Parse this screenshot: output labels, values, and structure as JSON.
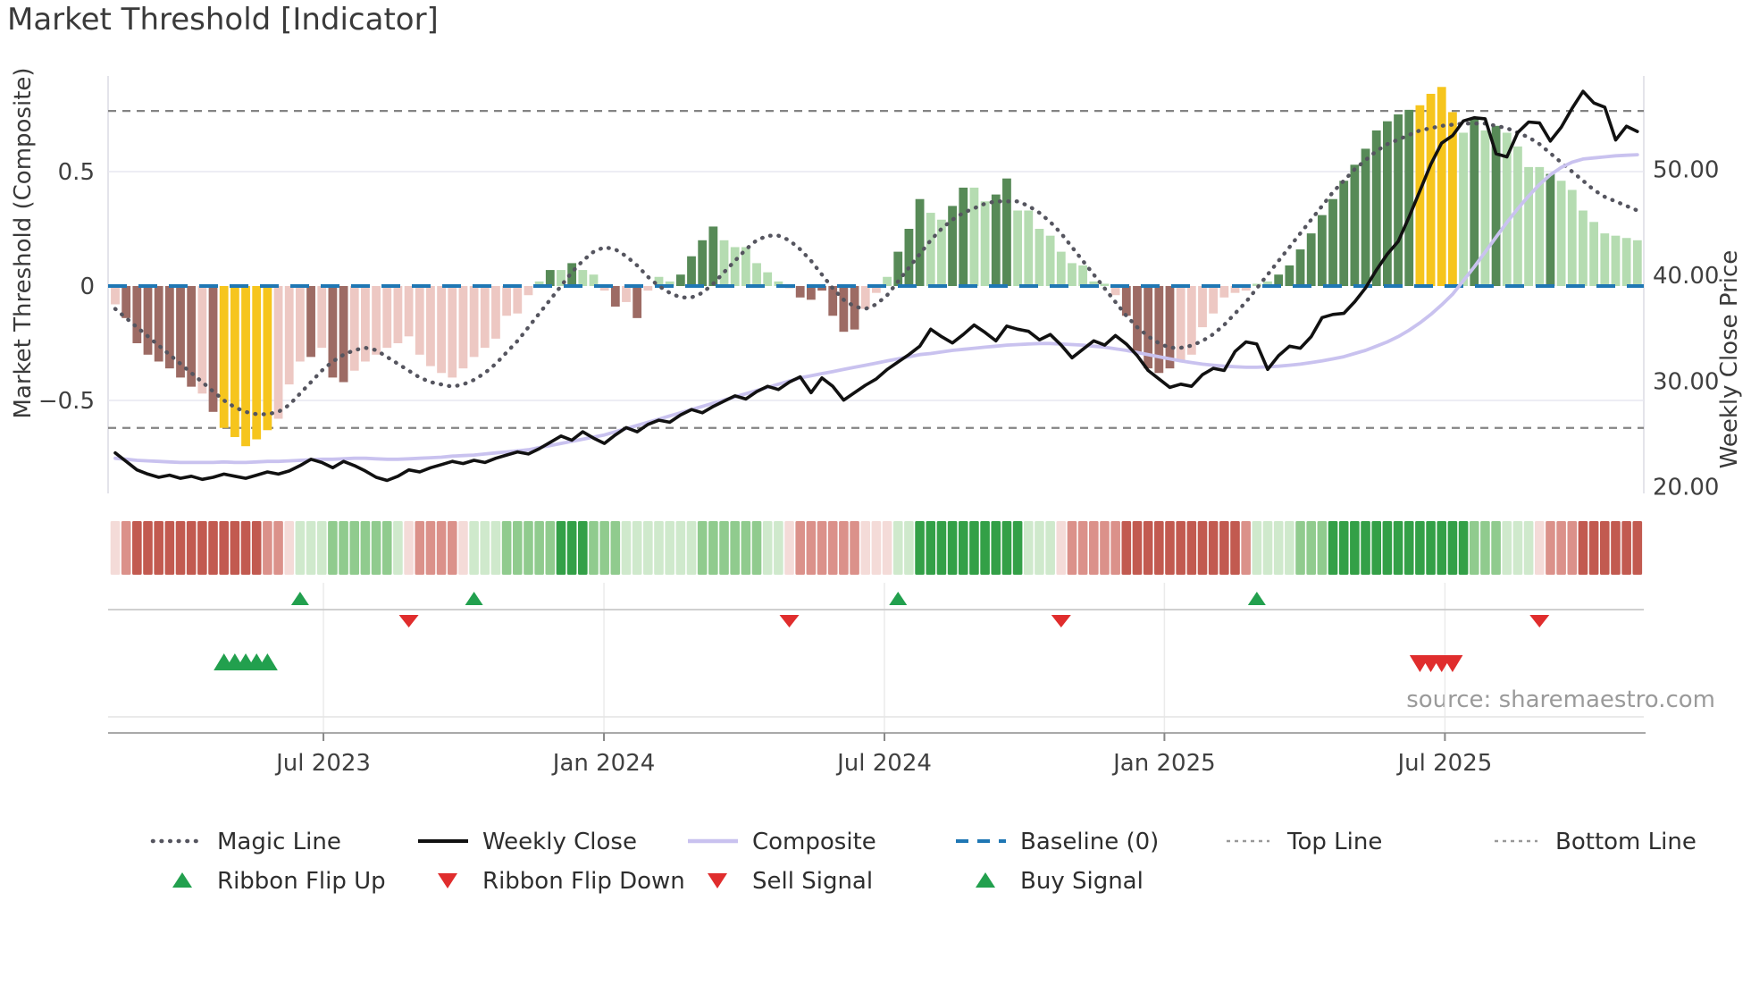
{
  "title": "Market Threshold [Indicator]",
  "source": "source: sharemaestro.com",
  "axes": {
    "left": {
      "title": "Market Threshold (Composite)",
      "ticks": [
        "0.5",
        "0",
        "−0.5"
      ],
      "tick_values": [
        0.5,
        0,
        -0.5
      ]
    },
    "right": {
      "title": "Weekly Close Price",
      "ticks": [
        "50.00",
        "40.00",
        "30.00",
        "20.00"
      ],
      "tick_values": [
        50,
        40,
        30,
        20
      ]
    },
    "x": {
      "ticks": [
        "Jul 2023",
        "Jan 2024",
        "Jul 2024",
        "Jan 2025",
        "Jul 2025"
      ]
    }
  },
  "legend": {
    "rows": [
      [
        {
          "label": "Magic Line",
          "type": "magic"
        },
        {
          "label": "Weekly Close",
          "type": "weekly"
        },
        {
          "label": "Composite",
          "type": "composite"
        },
        {
          "label": "Baseline (0)",
          "type": "baseline"
        },
        {
          "label": "Top Line",
          "type": "guide"
        },
        {
          "label": "Bottom Line",
          "type": "guide"
        }
      ],
      [
        {
          "label": "Ribbon Flip Up",
          "type": "tri-up"
        },
        {
          "label": "Ribbon Flip Down",
          "type": "tri-down"
        },
        {
          "label": "Sell Signal",
          "type": "tri-down"
        },
        {
          "label": "Buy Signal",
          "type": "tri-up"
        }
      ]
    ]
  },
  "colors": {
    "bar_dark_red": "#9d6b64",
    "bar_light_red": "#edc8c3",
    "bar_yellow": "#f6c51d",
    "bar_dark_green": "#578a57",
    "bar_light_green": "#b5dcb1",
    "ribbon": {
      "r3": "#c25a50",
      "r2": "#db918a",
      "r1": "#f4dbd8",
      "g1": "#cfe9cc",
      "g2": "#90cb8e",
      "g3": "#33a047"
    },
    "magic_line": "#55555f",
    "weekly_close": "#111111",
    "composite": "#c9c2ef",
    "baseline": "#1f77b4",
    "guide_line": "#848484",
    "signal_green": "#22a04e",
    "signal_red": "#e02d2d",
    "grid": "#e7e7f0",
    "spine": "#dcdce4",
    "tick_text": "#404040"
  },
  "chart_data": {
    "type": "combo",
    "description": "Weekly bars of Market Threshold composite (left axis) with Weekly Close and Composite price lines (right axis), smoothed Magic Line, EMA ribbon strip and trade signals",
    "ylim_left": [
      -0.91,
      0.92
    ],
    "ylim_right": [
      19.4,
      58.9
    ],
    "baseline": 0,
    "top_line": 0.765,
    "bottom_line": -0.62,
    "grid_values_left": [
      0.5,
      -0.5
    ],
    "x_ticks": [
      {
        "label": "Jul 2023",
        "i": 19.15
      },
      {
        "label": "Jan 2024",
        "i": 44.95
      },
      {
        "label": "Jul 2024",
        "i": 70.75
      },
      {
        "label": "Jan 2025",
        "i": 96.5
      },
      {
        "label": "Jul 2025",
        "i": 122.3
      }
    ],
    "bars": {
      "values": [
        -0.08,
        -0.14,
        -0.25,
        -0.3,
        -0.33,
        -0.36,
        -0.4,
        -0.44,
        -0.47,
        -0.55,
        -0.62,
        -0.66,
        -0.7,
        -0.67,
        -0.63,
        -0.58,
        -0.43,
        -0.33,
        -0.31,
        -0.27,
        -0.4,
        -0.42,
        -0.37,
        -0.33,
        -0.3,
        -0.27,
        -0.25,
        -0.22,
        -0.3,
        -0.35,
        -0.38,
        -0.4,
        -0.36,
        -0.31,
        -0.27,
        -0.23,
        -0.13,
        -0.12,
        -0.04,
        0.02,
        0.07,
        0.07,
        0.1,
        0.07,
        0.05,
        -0.02,
        -0.09,
        -0.07,
        -0.14,
        -0.02,
        0.04,
        0.02,
        0.05,
        0.13,
        0.2,
        0.26,
        0.2,
        0.17,
        0.17,
        0.1,
        0.06,
        0.02,
        -0.01,
        -0.05,
        -0.06,
        -0.02,
        -0.13,
        -0.2,
        -0.19,
        -0.1,
        -0.03,
        0.04,
        0.15,
        0.25,
        0.38,
        0.32,
        0.29,
        0.35,
        0.43,
        0.43,
        0.37,
        0.4,
        0.47,
        0.33,
        0.33,
        0.25,
        0.22,
        0.15,
        0.1,
        0.09,
        0.02,
        0.01,
        -0.04,
        -0.13,
        -0.29,
        -0.36,
        -0.38,
        -0.36,
        -0.33,
        -0.3,
        -0.18,
        -0.12,
        -0.05,
        -0.03,
        -0.02,
        0.01,
        0.02,
        0.05,
        0.09,
        0.16,
        0.23,
        0.31,
        0.38,
        0.46,
        0.53,
        0.6,
        0.68,
        0.72,
        0.75,
        0.77,
        0.79,
        0.84,
        0.87,
        0.76,
        0.67,
        0.73,
        0.68,
        0.7,
        0.67,
        0.61,
        0.52,
        0.52,
        0.49,
        0.46,
        0.42,
        0.33,
        0.28,
        0.23,
        0.22,
        0.21,
        0.2
      ],
      "colors": [
        "lr",
        "dr",
        "dr",
        "dr",
        "dr",
        "dr",
        "dr",
        "dr",
        "lr",
        "dr",
        "y",
        "y",
        "y",
        "y",
        "y",
        "lr",
        "lr",
        "lr",
        "dr",
        "lr",
        "dr",
        "dr",
        "lr",
        "lr",
        "lr",
        "lr",
        "lr",
        "lr",
        "lr",
        "lr",
        "lr",
        "lr",
        "lr",
        "lr",
        "lr",
        "lr",
        "lr",
        "lr",
        "lr",
        "lg",
        "dg",
        "lg",
        "dg",
        "lg",
        "lg",
        "lr",
        "dr",
        "lr",
        "dr",
        "lr",
        "lg",
        "lg",
        "dg",
        "dg",
        "dg",
        "dg",
        "lg",
        "lg",
        "lg",
        "lg",
        "lg",
        "lg",
        "lr",
        "dr",
        "dr",
        "dr",
        "dr",
        "dr",
        "dr",
        "lr",
        "lr",
        "lg",
        "dg",
        "dg",
        "dg",
        "lg",
        "lg",
        "dg",
        "dg",
        "lg",
        "lg",
        "dg",
        "dg",
        "lg",
        "lg",
        "lg",
        "lg",
        "lg",
        "lg",
        "lg",
        "lg",
        "lg",
        "lr",
        "dr",
        "dr",
        "dr",
        "dr",
        "dr",
        "lr",
        "lr",
        "lr",
        "lr",
        "lr",
        "lr",
        "lr",
        "lg",
        "lg",
        "dg",
        "dg",
        "dg",
        "dg",
        "dg",
        "dg",
        "dg",
        "dg",
        "dg",
        "dg",
        "dg",
        "dg",
        "dg",
        "y",
        "y",
        "y",
        "y",
        "lg",
        "dg",
        "lg",
        "dg",
        "lg",
        "lg",
        "lg",
        "lg",
        "dg",
        "lg",
        "lg",
        "lg",
        "lg",
        "lg",
        "lg",
        "lg",
        "lg"
      ]
    },
    "ribbon": [
      "r1",
      "r2",
      "r3",
      "r3",
      "r3",
      "r3",
      "r3",
      "r3",
      "r3",
      "r3",
      "r3",
      "r3",
      "r3",
      "r3",
      "r2",
      "r2",
      "r1",
      "g1",
      "g1",
      "g1",
      "g2",
      "g2",
      "g2",
      "g2",
      "g2",
      "g2",
      "g1",
      "r1",
      "r2",
      "r2",
      "r2",
      "r2",
      "r1",
      "g1",
      "g1",
      "g1",
      "g2",
      "g2",
      "g2",
      "g2",
      "g2",
      "g3",
      "g3",
      "g3",
      "g2",
      "g2",
      "g2",
      "g1",
      "g1",
      "g1",
      "g1",
      "g1",
      "g1",
      "g1",
      "g2",
      "g2",
      "g2",
      "g2",
      "g2",
      "g2",
      "g1",
      "g1",
      "r1",
      "r2",
      "r2",
      "r2",
      "r2",
      "r2",
      "r2",
      "r1",
      "r1",
      "r1",
      "g1",
      "g1",
      "g3",
      "g3",
      "g3",
      "g3",
      "g3",
      "g3",
      "g3",
      "g3",
      "g3",
      "g3",
      "g1",
      "g1",
      "g1",
      "r1",
      "r2",
      "r2",
      "r2",
      "r2",
      "r2",
      "r3",
      "r3",
      "r3",
      "r3",
      "r3",
      "r3",
      "r3",
      "r3",
      "r3",
      "r3",
      "r3",
      "r2",
      "g1",
      "g1",
      "g1",
      "g1",
      "g2",
      "g2",
      "g2",
      "g3",
      "g3",
      "g3",
      "g3",
      "g3",
      "g3",
      "g3",
      "g3",
      "g3",
      "g3",
      "g3",
      "g3",
      "g3",
      "g2",
      "g2",
      "g2",
      "g1",
      "g1",
      "g1",
      "r1",
      "r2",
      "r2",
      "r2",
      "r3",
      "r3",
      "r3",
      "r3",
      "r3",
      "r3"
    ],
    "lines": {
      "magic": [
        -0.1,
        -0.14,
        -0.18,
        -0.22,
        -0.26,
        -0.3,
        -0.34,
        -0.38,
        -0.42,
        -0.46,
        -0.5,
        -0.53,
        -0.55,
        -0.56,
        -0.56,
        -0.55,
        -0.52,
        -0.47,
        -0.42,
        -0.37,
        -0.33,
        -0.3,
        -0.28,
        -0.27,
        -0.28,
        -0.31,
        -0.34,
        -0.37,
        -0.4,
        -0.42,
        -0.43,
        -0.44,
        -0.43,
        -0.41,
        -0.38,
        -0.34,
        -0.29,
        -0.24,
        -0.18,
        -0.12,
        -0.06,
        0.0,
        0.06,
        0.11,
        0.15,
        0.17,
        0.16,
        0.13,
        0.09,
        0.04,
        0.0,
        -0.03,
        -0.05,
        -0.05,
        -0.03,
        0.01,
        0.06,
        0.11,
        0.16,
        0.2,
        0.22,
        0.22,
        0.2,
        0.16,
        0.11,
        0.05,
        -0.01,
        -0.06,
        -0.09,
        -0.1,
        -0.08,
        -0.04,
        0.02,
        0.08,
        0.14,
        0.2,
        0.25,
        0.29,
        0.32,
        0.34,
        0.36,
        0.37,
        0.37,
        0.37,
        0.35,
        0.32,
        0.28,
        0.23,
        0.17,
        0.11,
        0.05,
        -0.01,
        -0.07,
        -0.13,
        -0.18,
        -0.22,
        -0.25,
        -0.27,
        -0.27,
        -0.26,
        -0.24,
        -0.21,
        -0.17,
        -0.12,
        -0.07,
        -0.01,
        0.05,
        0.11,
        0.17,
        0.23,
        0.29,
        0.35,
        0.41,
        0.46,
        0.51,
        0.55,
        0.59,
        0.62,
        0.64,
        0.66,
        0.68,
        0.69,
        0.7,
        0.705,
        0.71,
        0.71,
        0.71,
        0.7,
        0.69,
        0.67,
        0.65,
        0.62,
        0.58,
        0.54,
        0.5,
        0.46,
        0.42,
        0.39,
        0.37,
        0.35,
        0.33
      ],
      "weekly_close": [
        23.2,
        22.4,
        21.6,
        21.2,
        20.9,
        21.1,
        20.8,
        21.0,
        20.7,
        20.9,
        21.2,
        21.0,
        20.8,
        21.1,
        21.4,
        21.2,
        21.5,
        22.0,
        22.6,
        22.3,
        21.8,
        22.4,
        22.0,
        21.5,
        20.9,
        20.6,
        21.0,
        21.6,
        21.4,
        21.8,
        22.1,
        22.4,
        22.2,
        22.5,
        22.3,
        22.7,
        23.0,
        23.3,
        23.1,
        23.6,
        24.2,
        24.8,
        24.4,
        25.2,
        24.6,
        24.1,
        24.9,
        25.6,
        25.2,
        25.9,
        26.3,
        26.1,
        26.8,
        27.3,
        27.0,
        27.6,
        28.1,
        28.6,
        28.3,
        29.0,
        29.5,
        29.2,
        29.9,
        30.4,
        28.9,
        30.3,
        29.5,
        28.2,
        28.9,
        29.6,
        30.2,
        31.1,
        31.8,
        32.5,
        33.3,
        34.9,
        34.2,
        33.6,
        34.4,
        35.3,
        34.6,
        33.8,
        35.2,
        34.9,
        34.7,
        33.9,
        34.4,
        33.4,
        32.2,
        33.0,
        33.8,
        33.4,
        34.3,
        33.5,
        32.4,
        31.0,
        30.2,
        29.4,
        29.7,
        29.5,
        30.6,
        31.2,
        31.0,
        32.8,
        33.7,
        33.5,
        31.1,
        32.4,
        33.3,
        33.1,
        34.2,
        36.0,
        36.3,
        36.4,
        37.5,
        38.8,
        40.5,
        42.0,
        43.2,
        45.5,
        48.0,
        50.5,
        52.5,
        53.2,
        54.6,
        54.9,
        54.8,
        51.5,
        51.2,
        53.5,
        54.5,
        54.4,
        52.7,
        54.0,
        55.8,
        57.4,
        56.3,
        55.9,
        52.8,
        54.1,
        53.6
      ],
      "composite": [
        22.7,
        22.6,
        22.5,
        22.45,
        22.4,
        22.35,
        22.3,
        22.3,
        22.3,
        22.3,
        22.35,
        22.3,
        22.3,
        22.35,
        22.4,
        22.4,
        22.45,
        22.5,
        22.55,
        22.6,
        22.6,
        22.65,
        22.7,
        22.7,
        22.65,
        22.6,
        22.6,
        22.65,
        22.7,
        22.75,
        22.8,
        22.9,
        22.95,
        23.0,
        23.1,
        23.2,
        23.3,
        23.4,
        23.5,
        23.7,
        23.9,
        24.1,
        24.3,
        24.5,
        24.7,
        24.9,
        25.2,
        25.5,
        25.8,
        26.1,
        26.4,
        26.7,
        27.0,
        27.3,
        27.6,
        27.9,
        28.2,
        28.5,
        28.8,
        29.1,
        29.4,
        29.7,
        30.0,
        30.3,
        30.5,
        30.7,
        30.9,
        31.1,
        31.3,
        31.5,
        31.7,
        31.9,
        32.1,
        32.3,
        32.5,
        32.6,
        32.75,
        32.9,
        33.0,
        33.1,
        33.2,
        33.3,
        33.4,
        33.45,
        33.5,
        33.55,
        33.55,
        33.5,
        33.45,
        33.4,
        33.3,
        33.2,
        33.05,
        32.9,
        32.7,
        32.5,
        32.3,
        32.1,
        31.9,
        31.75,
        31.6,
        31.5,
        31.4,
        31.35,
        31.3,
        31.3,
        31.35,
        31.4,
        31.5,
        31.6,
        31.75,
        31.9,
        32.1,
        32.3,
        32.6,
        32.9,
        33.3,
        33.7,
        34.2,
        34.8,
        35.5,
        36.3,
        37.2,
        38.2,
        39.5,
        40.8,
        42.2,
        43.6,
        45.0,
        46.3,
        47.5,
        48.6,
        49.5,
        50.2,
        50.7,
        51.0,
        51.1,
        51.2,
        51.3,
        51.35,
        51.4
      ]
    },
    "markers": {
      "ribbon_flip_up_idx": [
        17,
        33,
        72,
        105
      ],
      "ribbon_flip_down_idx": [
        27,
        62,
        87,
        131
      ],
      "buy_signal_idx": [
        10,
        11,
        12,
        13,
        14
      ],
      "sell_signal_idx": [
        120,
        121,
        122,
        123
      ]
    }
  }
}
